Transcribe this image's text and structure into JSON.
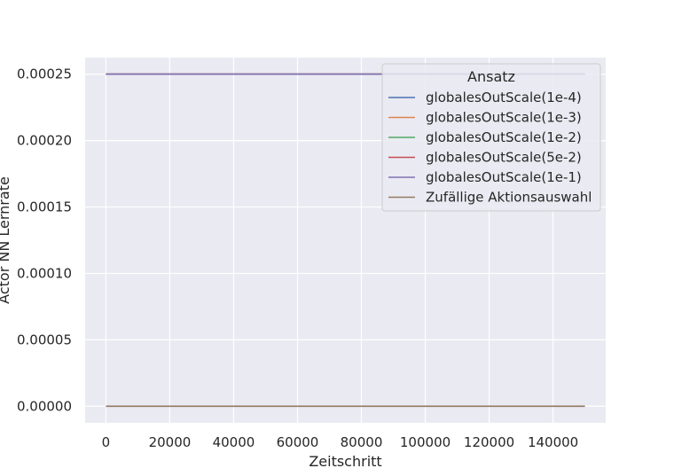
{
  "chart_data": {
    "type": "line",
    "title": "",
    "xlabel": "Zeitschritt",
    "ylabel": "Actor NN Lernrate",
    "xlim": [
      -6500,
      156500
    ],
    "ylim": [
      -1.25e-05,
      0.0002625
    ],
    "xticks": [
      0,
      20000,
      40000,
      60000,
      80000,
      100000,
      120000,
      140000
    ],
    "xtick_labels": [
      "0",
      "20000",
      "40000",
      "60000",
      "80000",
      "100000",
      "120000",
      "140000"
    ],
    "yticks": [
      0,
      5e-05,
      0.0001,
      0.00015,
      0.0002,
      0.00025
    ],
    "ytick_labels": [
      "0.00000",
      "0.00005",
      "0.00010",
      "0.00015",
      "0.00020",
      "0.00025"
    ],
    "grid": true,
    "legend_title": "Ansatz",
    "legend_position": "top-right",
    "x": [
      0,
      150000
    ],
    "series": [
      {
        "name": "globalesOutScale(1e-4)",
        "color": "#4c72b0",
        "values": [
          0.00025,
          0.00025
        ]
      },
      {
        "name": "globalesOutScale(1e-3)",
        "color": "#dd8452",
        "values": [
          0.00025,
          0.00025
        ]
      },
      {
        "name": "globalesOutScale(1e-2)",
        "color": "#55a868",
        "values": [
          0.00025,
          0.00025
        ]
      },
      {
        "name": "globalesOutScale(5e-2)",
        "color": "#c44e52",
        "values": [
          0.00025,
          0.00025
        ]
      },
      {
        "name": "globalesOutScale(1e-1)",
        "color": "#8172b3",
        "values": [
          0.00025,
          0.00025
        ]
      },
      {
        "name": "Zufällige Aktionsauswahl",
        "color": "#937860",
        "values": [
          0,
          0
        ]
      }
    ]
  },
  "colors": {
    "plot_background": "#eaeaf2",
    "grid": "#ffffff",
    "text": "#262626"
  }
}
